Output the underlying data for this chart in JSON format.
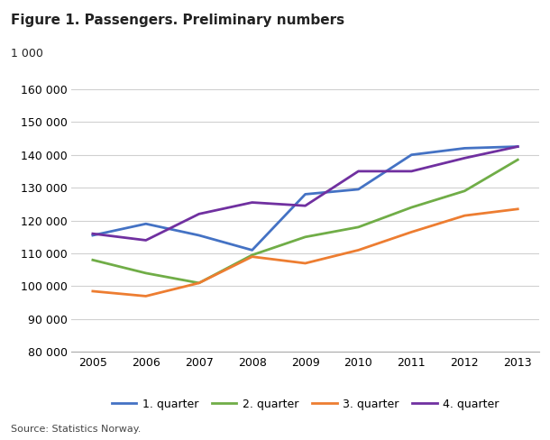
{
  "years": [
    2005,
    2006,
    2007,
    2008,
    2009,
    2010,
    2011,
    2012,
    2013
  ],
  "q1": [
    115500,
    119000,
    115500,
    111000,
    128000,
    129500,
    140000,
    142000,
    142500
  ],
  "q2": [
    108000,
    104000,
    101000,
    109500,
    115000,
    118000,
    124000,
    129000,
    138500
  ],
  "q3": [
    98500,
    97000,
    101000,
    109000,
    107000,
    111000,
    116500,
    121500,
    123500
  ],
  "q4": [
    116000,
    114000,
    122000,
    125500,
    124500,
    135000,
    135000,
    139000,
    142500
  ],
  "colors": {
    "q1": "#4472c4",
    "q2": "#70ad47",
    "q3": "#ed7d31",
    "q4": "#7030a0"
  },
  "legend_labels": [
    "1. quarter",
    "2. quarter",
    "3. quarter",
    "4. quarter"
  ],
  "title": "Figure 1. Passengers. Preliminary numbers",
  "ylabel_top": "1 000",
  "ylim": [
    80000,
    163000
  ],
  "yticks": [
    80000,
    90000,
    100000,
    110000,
    120000,
    130000,
    140000,
    150000,
    160000
  ],
  "source": "Source: Statistics Norway.",
  "bg_color": "#ffffff",
  "grid_color": "#d0d0d0",
  "linewidth": 2.0
}
